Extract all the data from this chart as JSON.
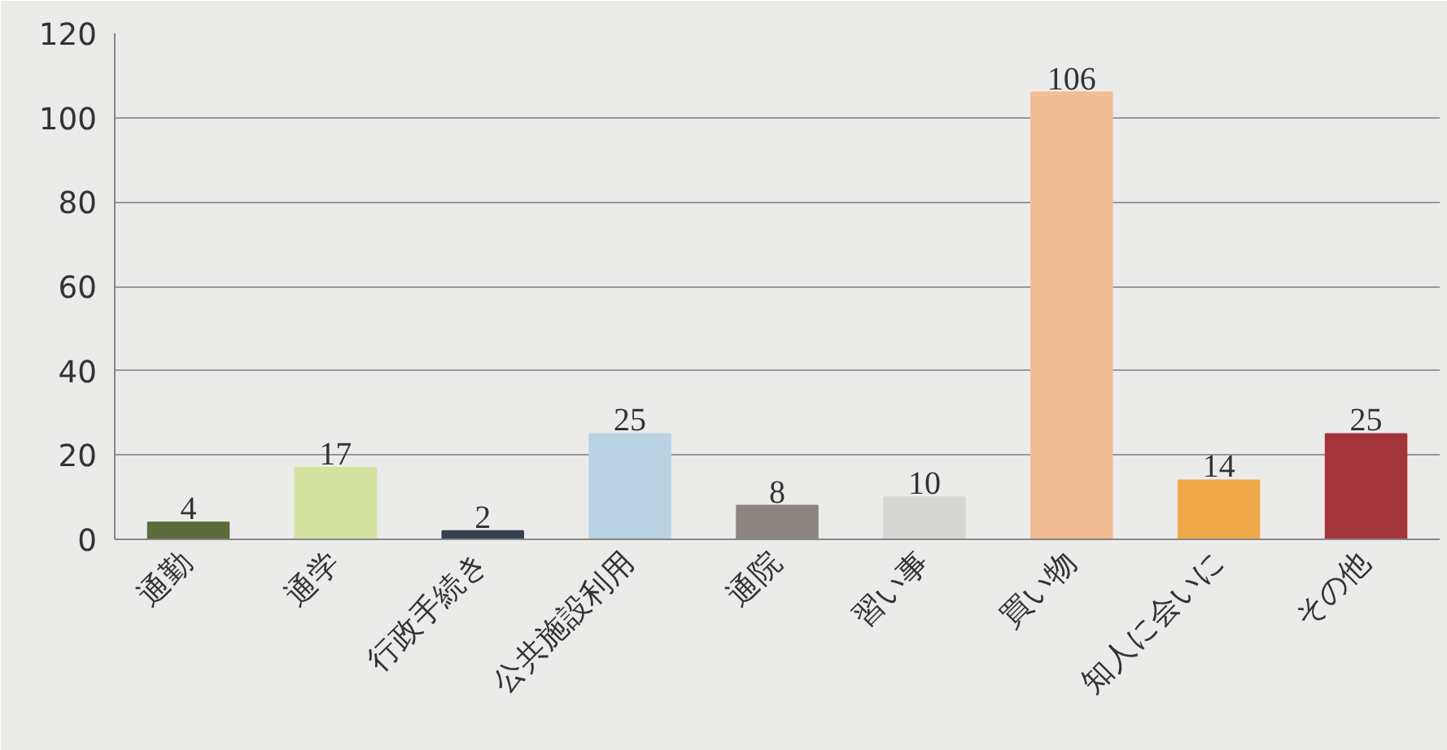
{
  "chart_data": {
    "type": "bar",
    "categories": [
      "通勤",
      "通学",
      "行政手続き",
      "公共施設利用",
      "通院",
      "習い事",
      "買い物",
      "知人に会いに",
      "その他"
    ],
    "values": [
      4,
      17,
      2,
      25,
      8,
      10,
      106,
      14,
      25
    ],
    "colors": [
      "#5b6b3a",
      "#d3e29e",
      "#34404e",
      "#b9d3e4",
      "#8c8480",
      "#d6d6d4",
      "#f2bc94",
      "#f0a94a",
      "#a2343a"
    ],
    "ylim": [
      0,
      120
    ],
    "yticks": [
      0,
      20,
      40,
      60,
      80,
      100,
      120
    ],
    "grid": "y",
    "data_labels": true
  }
}
